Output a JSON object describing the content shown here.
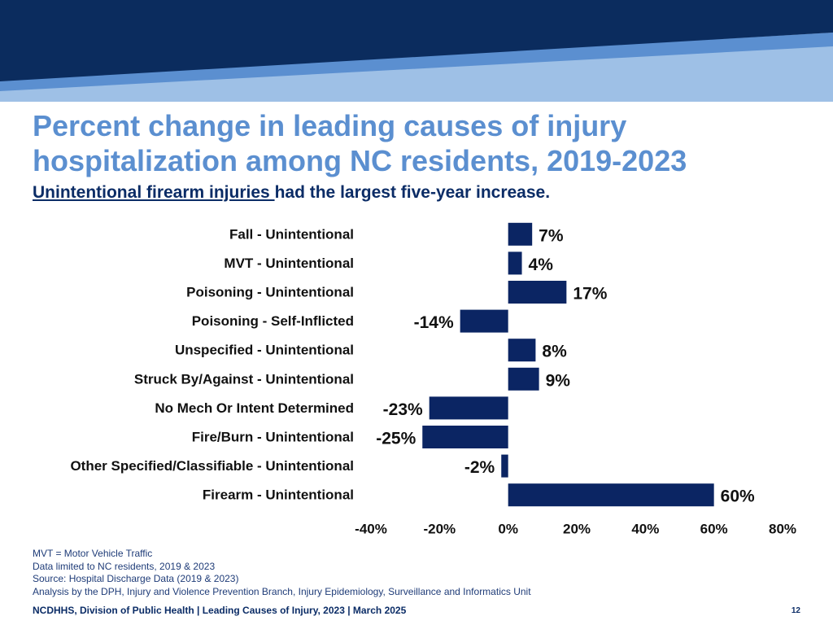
{
  "colors": {
    "banner_dark": "#0b2c5e",
    "banner_mid": "#5b8fd0",
    "banner_light": "#9ec0e6",
    "title": "#5b8fd0",
    "bar": "#0b2563",
    "text_dark": "#0b2c66"
  },
  "header": {
    "title_line1": "Percent change in leading causes of injury",
    "title_line2": "hospitalization among NC residents, 2019-2023",
    "subtitle_highlight": "Unintentional firearm injuries ",
    "subtitle_rest": "had the largest five-year increase."
  },
  "chart_data": {
    "type": "bar",
    "orientation": "horizontal",
    "categories": [
      "Fall - Unintentional",
      "MVT - Unintentional",
      "Poisoning - Unintentional",
      "Poisoning - Self-Inflicted",
      "Unspecified - Unintentional",
      "Struck By/Against - Unintentional",
      "No Mech Or Intent Determined",
      "Fire/Burn - Unintentional",
      "Other Specified/Classifiable - Unintentional",
      "Firearm - Unintentional"
    ],
    "values": [
      7,
      4,
      17,
      -14,
      8,
      9,
      -23,
      -25,
      -2,
      60
    ],
    "value_labels": [
      "7%",
      "4%",
      "17%",
      "-14%",
      "8%",
      "9%",
      "-23%",
      "-25%",
      "-2%",
      "60%"
    ],
    "xlim": [
      -40,
      80
    ],
    "xticks": [
      -40,
      -20,
      0,
      20,
      40,
      60,
      80
    ],
    "xtick_labels": [
      "-40%",
      "-20%",
      "0%",
      "20%",
      "40%",
      "60%",
      "80%"
    ],
    "xlabel": "",
    "ylabel": "",
    "grid": false,
    "legend": false
  },
  "notes": [
    "MVT = Motor Vehicle Traffic",
    "Data limited to NC residents, 2019 & 2023",
    "Source: Hospital Discharge Data (2019 & 2023)",
    "Analysis by the DPH, Injury and Violence Prevention Branch, Injury Epidemiology, Surveillance and Informatics Unit"
  ],
  "footer": {
    "text": "NCDHHS, Division of Public Health | Leading Causes of Injury, 2023 | March 2025",
    "page_number": "12"
  }
}
